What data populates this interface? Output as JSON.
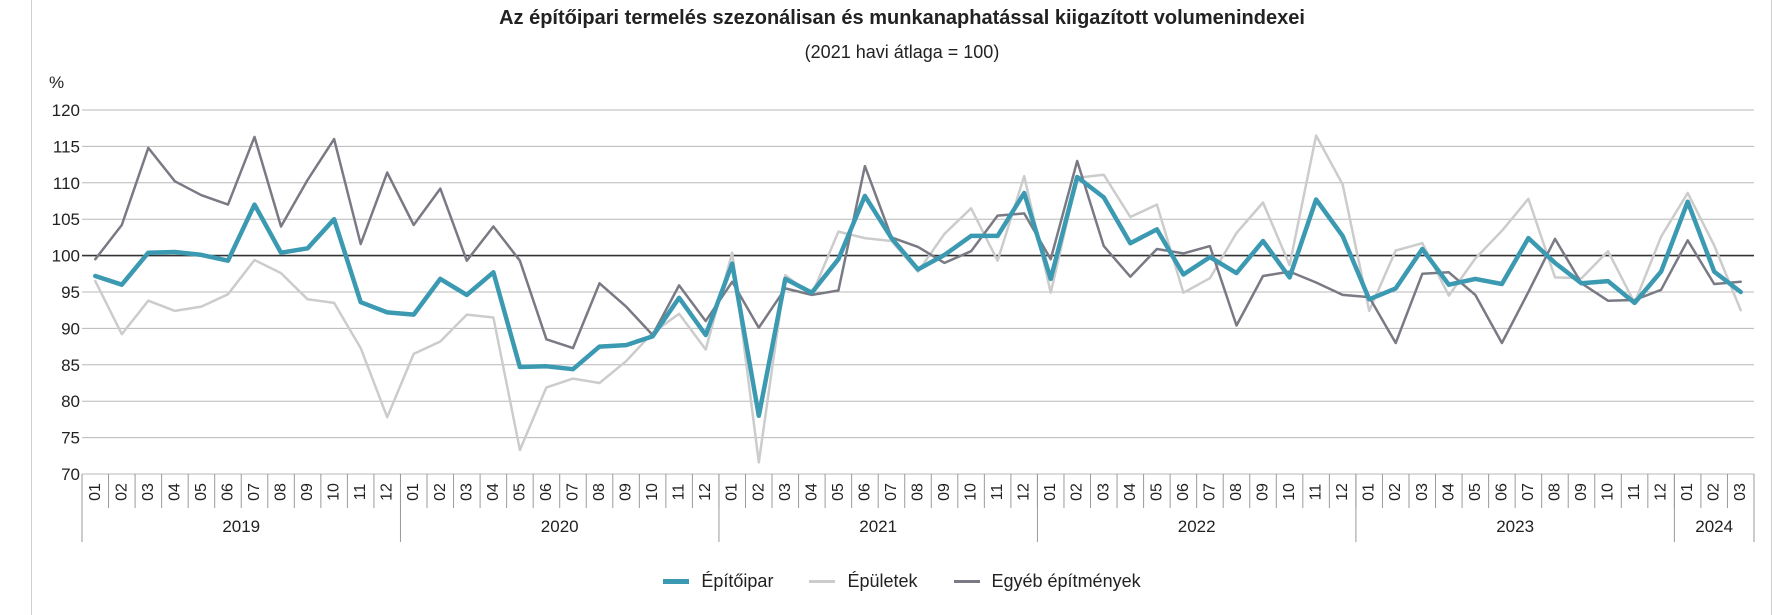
{
  "chart_data": {
    "type": "line",
    "title": "Az építőipari termelés szezonálisan és munkanaphatással kiigazított volumenindexei",
    "subtitle": "(2021 havi átlaga = 100)",
    "ylabel": "%",
    "ylim": [
      70,
      120
    ],
    "yticks": [
      70,
      75,
      80,
      85,
      90,
      95,
      100,
      105,
      110,
      115,
      120
    ],
    "reference_line": 100,
    "grid": true,
    "legend_position": "bottom",
    "months": [
      "01",
      "02",
      "03",
      "04",
      "05",
      "06",
      "07",
      "08",
      "09",
      "10",
      "11",
      "12",
      "01",
      "02",
      "03",
      "04",
      "05",
      "06",
      "07",
      "08",
      "09",
      "10",
      "11",
      "12",
      "01",
      "02",
      "03",
      "04",
      "05",
      "06",
      "07",
      "08",
      "09",
      "10",
      "11",
      "12",
      "01",
      "02",
      "03",
      "04",
      "05",
      "06",
      "07",
      "08",
      "09",
      "10",
      "11",
      "12",
      "01",
      "02",
      "03",
      "04",
      "05",
      "06",
      "07",
      "08",
      "09",
      "10",
      "11",
      "12",
      "01",
      "02",
      "03"
    ],
    "years": [
      {
        "label": "2019",
        "count": 12
      },
      {
        "label": "2020",
        "count": 12
      },
      {
        "label": "2021",
        "count": 12
      },
      {
        "label": "2022",
        "count": 12
      },
      {
        "label": "2023",
        "count": 12
      },
      {
        "label": "2024",
        "count": 3
      }
    ],
    "series": [
      {
        "name": "Építőipar",
        "color": "#3b9ab2",
        "width": 4.5,
        "values": [
          97.2,
          96.0,
          100.4,
          100.5,
          100.1,
          99.3,
          107.0,
          100.4,
          101.0,
          105.0,
          93.6,
          92.2,
          91.9,
          96.8,
          94.6,
          97.7,
          84.7,
          84.8,
          84.4,
          87.5,
          87.7,
          88.9,
          94.2,
          89.1,
          98.9,
          78.0,
          96.8,
          94.9,
          99.5,
          108.2,
          102.4,
          98.1,
          100.1,
          102.7,
          102.7,
          108.6,
          96.8,
          110.8,
          108.0,
          101.7,
          103.6,
          97.4,
          99.8,
          97.6,
          102.0,
          97.0,
          107.7,
          102.7,
          94.0,
          95.5,
          100.9,
          96.0,
          96.8,
          96.1,
          102.4,
          99.0,
          96.2,
          96.5,
          93.5,
          97.8,
          107.4,
          97.8,
          95.0
        ]
      },
      {
        "name": "Épületek",
        "color": "#cccccc",
        "width": 2.5,
        "values": [
          96.5,
          89.2,
          93.8,
          92.4,
          93.0,
          94.7,
          99.4,
          97.6,
          94.0,
          93.5,
          87.3,
          77.8,
          86.5,
          88.2,
          91.9,
          91.5,
          73.3,
          81.9,
          83.1,
          82.5,
          85.5,
          89.4,
          92.0,
          87.1,
          100.4,
          71.6,
          97.3,
          94.6,
          103.3,
          102.4,
          102.0,
          97.8,
          103.0,
          106.5,
          99.3,
          110.9,
          94.9,
          110.7,
          111.1,
          105.3,
          107.0,
          94.9,
          96.9,
          103.1,
          107.3,
          98.7,
          116.5,
          109.8,
          92.4,
          100.7,
          101.7,
          94.5,
          99.6,
          103.4,
          107.8,
          97.0,
          96.9,
          100.6,
          93.5,
          102.6,
          108.6,
          101.4,
          92.5
        ]
      },
      {
        "name": "Egyéb építmények",
        "color": "#7a7a84",
        "width": 2.5,
        "values": [
          99.5,
          104.2,
          114.8,
          110.2,
          108.3,
          107.0,
          116.3,
          104.0,
          110.4,
          116.0,
          101.6,
          111.4,
          104.2,
          109.2,
          99.3,
          104.0,
          99.3,
          88.5,
          87.3,
          96.2,
          93.0,
          89.1,
          95.9,
          91.0,
          96.4,
          90.1,
          95.5,
          94.6,
          95.2,
          112.3,
          102.5,
          101.2,
          99.0,
          100.6,
          105.5,
          105.8,
          99.5,
          113.0,
          101.3,
          97.1,
          100.9,
          100.3,
          101.3,
          90.4,
          97.2,
          97.8,
          96.3,
          94.6,
          94.3,
          88.0,
          97.5,
          97.7,
          94.6,
          88.0,
          95.0,
          102.3,
          96.2,
          93.8,
          93.9,
          95.3,
          102.1,
          96.1,
          96.4
        ]
      }
    ]
  }
}
